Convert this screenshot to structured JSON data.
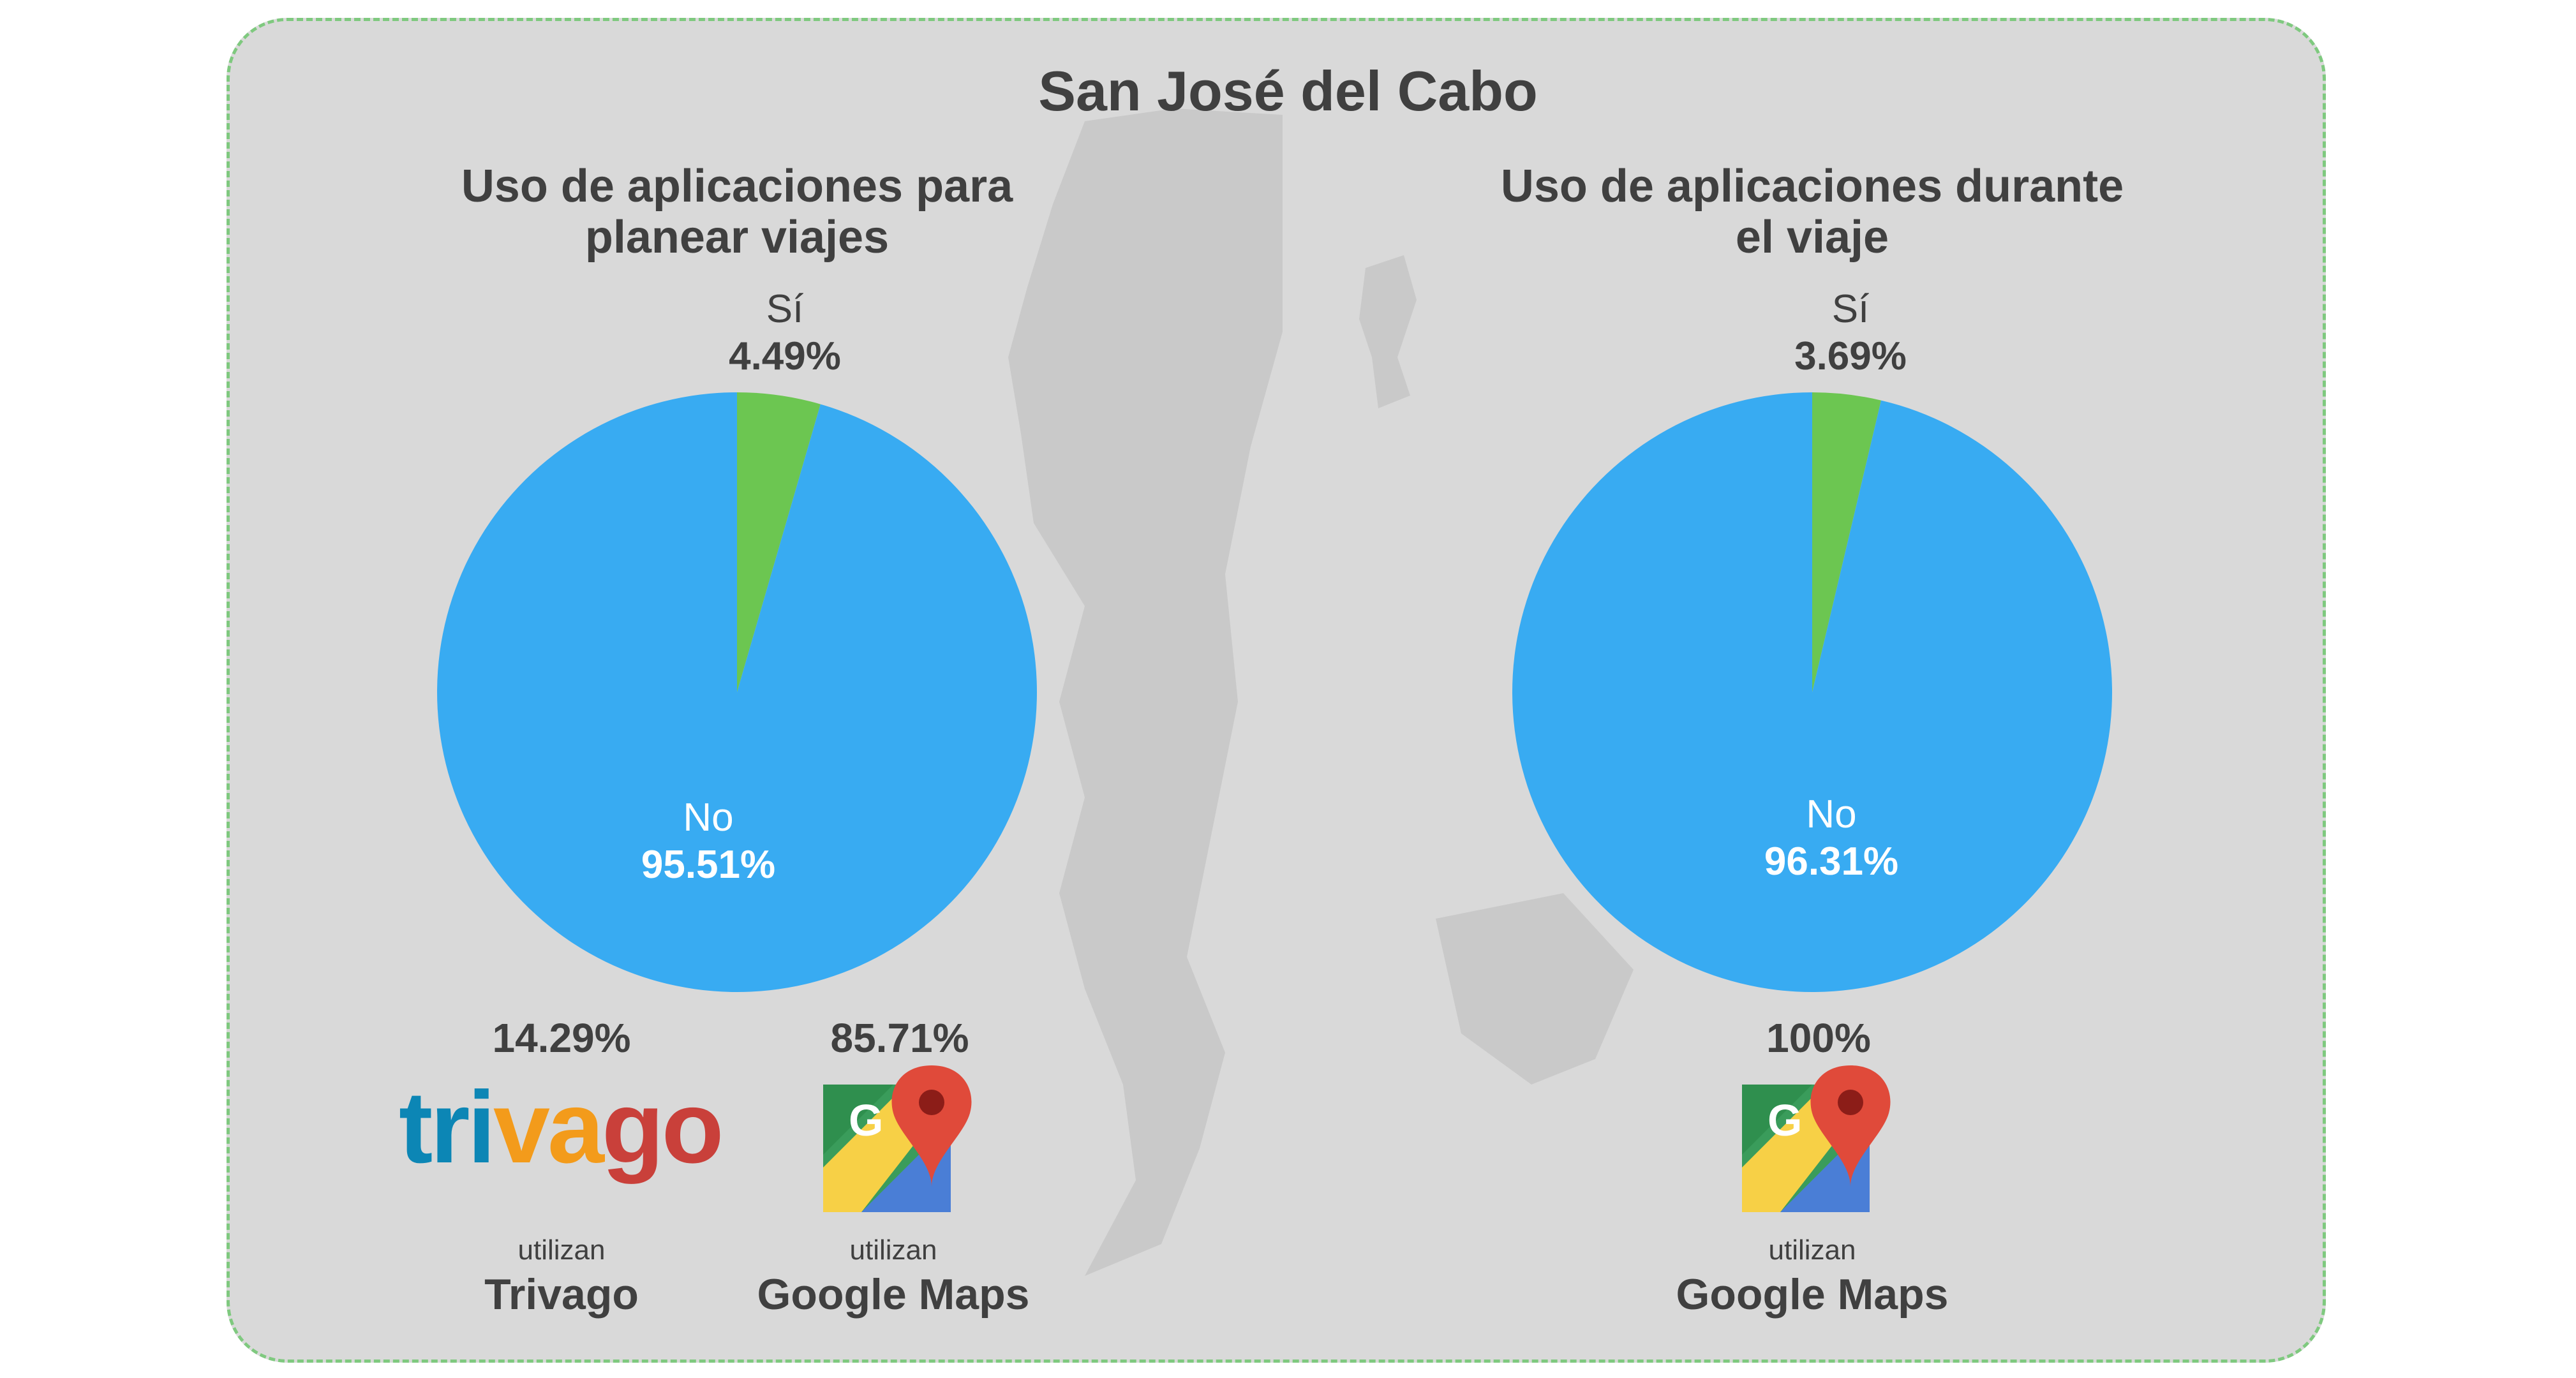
{
  "title": "San José del Cabo",
  "colors": {
    "no": "#38abf2",
    "si": "#6cc651",
    "panel": "#d9d9d9",
    "map": "#c8c8c8",
    "text": "#404040"
  },
  "chart_data": [
    {
      "type": "pie",
      "title": "Uso de aplicaciones para planear viajes",
      "title_lines": [
        "Uso de aplicaciones para",
        "planear viajes"
      ],
      "slices": [
        {
          "label": "Sí",
          "value": 4.49,
          "value_label": "4.49%",
          "color": "#6cc651"
        },
        {
          "label": "No",
          "value": 95.51,
          "value_label": "95.51%",
          "color": "#38abf2"
        }
      ]
    },
    {
      "type": "pie",
      "title": "Uso de aplicaciones durante el viaje",
      "title_lines": [
        "Uso de aplicaciones durante",
        "el viaje"
      ],
      "slices": [
        {
          "label": "Sí",
          "value": 3.69,
          "value_label": "3.69%",
          "color": "#6cc651"
        },
        {
          "label": "No",
          "value": 96.31,
          "value_label": "96.31%",
          "color": "#38abf2"
        }
      ]
    }
  ],
  "apps_planning": [
    {
      "pct": "14.29%",
      "logo": "trivago-logo",
      "logo_text": "trivago",
      "caption": "utilizan",
      "name": "Trivago"
    },
    {
      "pct": "85.71%",
      "logo": "google-maps-icon",
      "caption": "utilizan",
      "name": "Google Maps"
    }
  ],
  "apps_during": [
    {
      "pct": "100%",
      "logo": "google-maps-icon",
      "caption": "utilizan",
      "name": "Google Maps"
    }
  ]
}
